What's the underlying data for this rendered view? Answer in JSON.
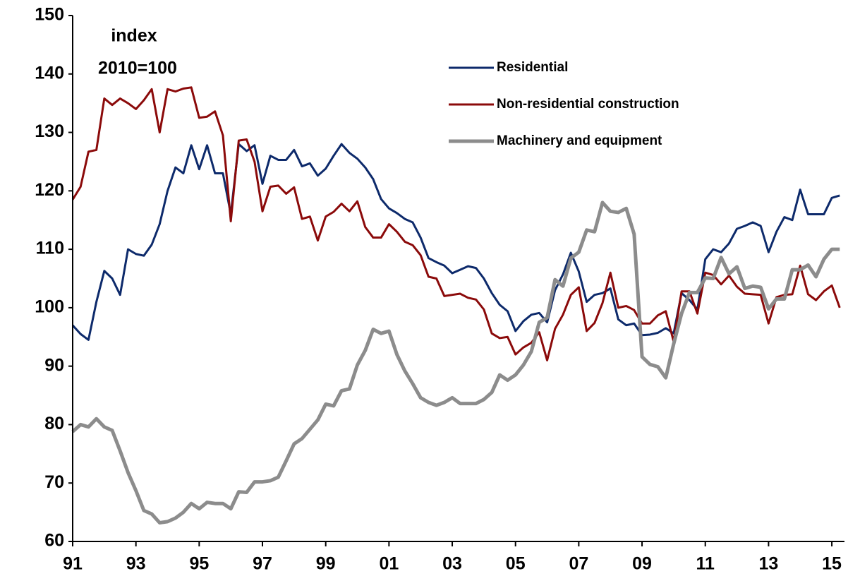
{
  "chart_data": {
    "type": "line",
    "annotations": [
      "index",
      "2010=100"
    ],
    "x": [
      1991,
      1991.25,
      1991.5,
      1991.75,
      1992,
      1992.25,
      1992.5,
      1992.75,
      1993,
      1993.25,
      1993.5,
      1993.75,
      1994,
      1994.25,
      1994.5,
      1994.75,
      1995,
      1995.25,
      1995.5,
      1995.75,
      1996,
      1996.25,
      1996.5,
      1996.75,
      1997,
      1997.25,
      1997.5,
      1997.75,
      1998,
      1998.25,
      1998.5,
      1998.75,
      1999,
      1999.25,
      1999.5,
      1999.75,
      2000,
      2000.25,
      2000.5,
      2000.75,
      2001,
      2001.25,
      2001.5,
      2001.75,
      2002,
      2002.25,
      2002.5,
      2002.75,
      2003,
      2003.25,
      2003.5,
      2003.75,
      2004,
      2004.25,
      2004.5,
      2004.75,
      2005,
      2005.25,
      2005.5,
      2005.75,
      2006,
      2006.25,
      2006.5,
      2006.75,
      2007,
      2007.25,
      2007.5,
      2007.75,
      2008,
      2008.25,
      2008.5,
      2008.75,
      2009,
      2009.25,
      2009.5,
      2009.75,
      2010,
      2010.25,
      2010.5,
      2010.75,
      2011,
      2011.25,
      2011.5,
      2011.75,
      2012,
      2012.25,
      2012.5,
      2012.75,
      2013,
      2013.25,
      2013.5,
      2013.75,
      2014,
      2014.25,
      2014.5,
      2014.75,
      2015,
      2015.25
    ],
    "series": [
      {
        "name": "Residential",
        "color": "#0d2a6b",
        "width": 3,
        "values": [
          97,
          95.5,
          94.5,
          101,
          106.3,
          105,
          102.2,
          110,
          109.2,
          108.9,
          110.8,
          114.3,
          120,
          124,
          123,
          127.8,
          123.7,
          127.8,
          123,
          123,
          116,
          128,
          126.8,
          127.8,
          121.2,
          126,
          125.3,
          125.3,
          127,
          124.2,
          124.7,
          122.6,
          123.8,
          126,
          128,
          126.5,
          125.5,
          124,
          122,
          118.6,
          117,
          116.2,
          115.2,
          114.6,
          112,
          108.5,
          107.8,
          107.2,
          105.9,
          106.5,
          107.1,
          106.8,
          105,
          102.5,
          100.5,
          99.4,
          96,
          97.7,
          98.8,
          99.1,
          97.5,
          103,
          105.7,
          109.4,
          106.2,
          101,
          102.2,
          102.5,
          103.3,
          98,
          97,
          97.3,
          95.3,
          95.4,
          95.7,
          96.5,
          95.6,
          102.5,
          101.3,
          99.7,
          108.3,
          110,
          109.5,
          111,
          113.5,
          114,
          114.6,
          114,
          109.5,
          113,
          115.5,
          115,
          120.2,
          116,
          116,
          116,
          118.8,
          119.2
        ]
      },
      {
        "name": "Non-residential construction",
        "color": "#8b0a0a",
        "width": 3,
        "values": [
          118.5,
          120.7,
          126.7,
          127,
          135.8,
          134.7,
          135.8,
          135,
          134,
          135.5,
          137.4,
          130,
          137.4,
          137,
          137.5,
          137.7,
          132.5,
          132.7,
          133.6,
          129.5,
          114.8,
          128.6,
          128.8,
          125,
          116.5,
          120.7,
          120.9,
          119.5,
          120.6,
          115.2,
          115.6,
          111.5,
          115.6,
          116.4,
          117.8,
          116.5,
          118.2,
          113.8,
          112,
          112,
          114.3,
          113,
          111.3,
          110.7,
          109,
          105.3,
          105,
          102,
          102.2,
          102.4,
          101.7,
          101.4,
          99.7,
          95.6,
          94.8,
          95,
          92,
          93.2,
          94,
          95.8,
          91,
          96.4,
          98.8,
          102.2,
          103.5,
          96,
          97.4,
          100.8,
          106,
          100,
          100.3,
          99.6,
          97.3,
          97.3,
          98.7,
          99.4,
          94.2,
          102.8,
          102.8,
          99,
          106,
          105.6,
          104,
          105.5,
          103.6,
          102.4,
          102.3,
          102.2,
          97.3,
          101.8,
          102.2,
          102.3,
          107.2,
          102.3,
          101.3,
          102.8,
          103.8,
          100
        ]
      },
      {
        "name": "Machinery and equipment",
        "color": "#8c8c8c",
        "width": 5,
        "values": [
          78.8,
          80,
          79.6,
          81,
          79.6,
          79,
          75.5,
          71.8,
          68.7,
          65.3,
          64.7,
          63.2,
          63.4,
          64,
          65,
          66.5,
          65.6,
          66.7,
          66.5,
          66.5,
          65.6,
          68.5,
          68.4,
          70.2,
          70.2,
          70.4,
          71,
          73.8,
          76.7,
          77.6,
          79.2,
          80.8,
          83.5,
          83.2,
          85.8,
          86.1,
          90.2,
          92.7,
          96.3,
          95.6,
          96,
          92,
          89.2,
          87,
          84.6,
          83.8,
          83.3,
          83.8,
          84.6,
          83.6,
          83.6,
          83.6,
          84.3,
          85.5,
          88.5,
          87.6,
          88.5,
          90.2,
          92.5,
          97.5,
          98.3,
          104.8,
          103.7,
          108.5,
          109.5,
          113.3,
          113,
          118,
          116.5,
          116.3,
          117,
          112.6,
          91.6,
          90.3,
          89.9,
          88,
          93.8,
          99,
          102.6,
          102.6,
          105.1,
          105,
          108.6,
          105.8,
          107,
          103.3,
          103.7,
          103.5,
          99.8,
          101.5,
          101.5,
          106.5,
          106.5,
          107.3,
          105.3,
          108.3,
          110,
          110
        ]
      }
    ],
    "xlim": [
      1991,
      2015.4
    ],
    "xticks": [
      {
        "value": 1991,
        "label": "91"
      },
      {
        "value": 1993,
        "label": "93"
      },
      {
        "value": 1995,
        "label": "95"
      },
      {
        "value": 1997,
        "label": "97"
      },
      {
        "value": 1999,
        "label": "99"
      },
      {
        "value": 2001,
        "label": "01"
      },
      {
        "value": 2003,
        "label": "03"
      },
      {
        "value": 2005,
        "label": "05"
      },
      {
        "value": 2007,
        "label": "07"
      },
      {
        "value": 2009,
        "label": "09"
      },
      {
        "value": 2011,
        "label": "11"
      },
      {
        "value": 2013,
        "label": "13"
      },
      {
        "value": 2015,
        "label": "15"
      }
    ],
    "ylim": [
      60,
      150
    ],
    "yticks": [
      60,
      70,
      80,
      90,
      100,
      110,
      120,
      130,
      140,
      150
    ],
    "legend": "top"
  }
}
